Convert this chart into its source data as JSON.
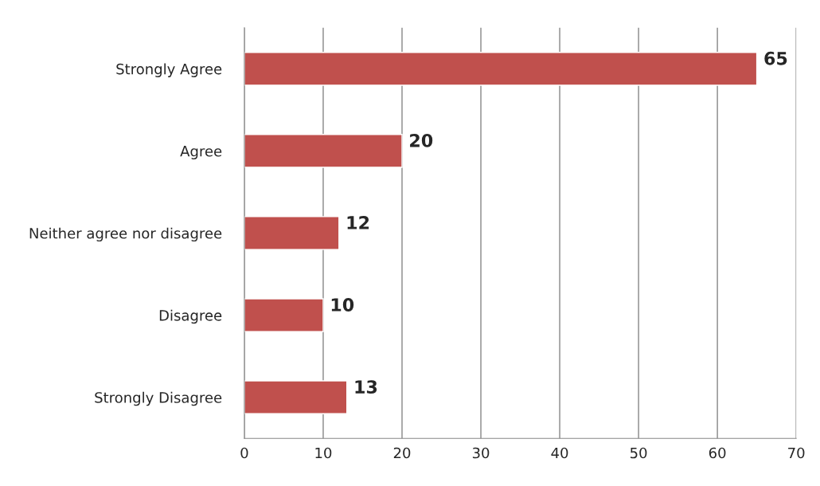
{
  "chart_data": {
    "type": "bar",
    "orientation": "horizontal",
    "categories": [
      "Strongly Agree",
      "Agree",
      "Neither agree nor disagree",
      "Disagree",
      "Strongly Disagree"
    ],
    "values": [
      65,
      20,
      12,
      10,
      13
    ],
    "color": "#c0504d",
    "xlim": [
      0,
      70
    ],
    "xticks": [
      0,
      10,
      20,
      30,
      40,
      50,
      60,
      70
    ],
    "grid": "x",
    "data_labels": true,
    "legend": false
  }
}
